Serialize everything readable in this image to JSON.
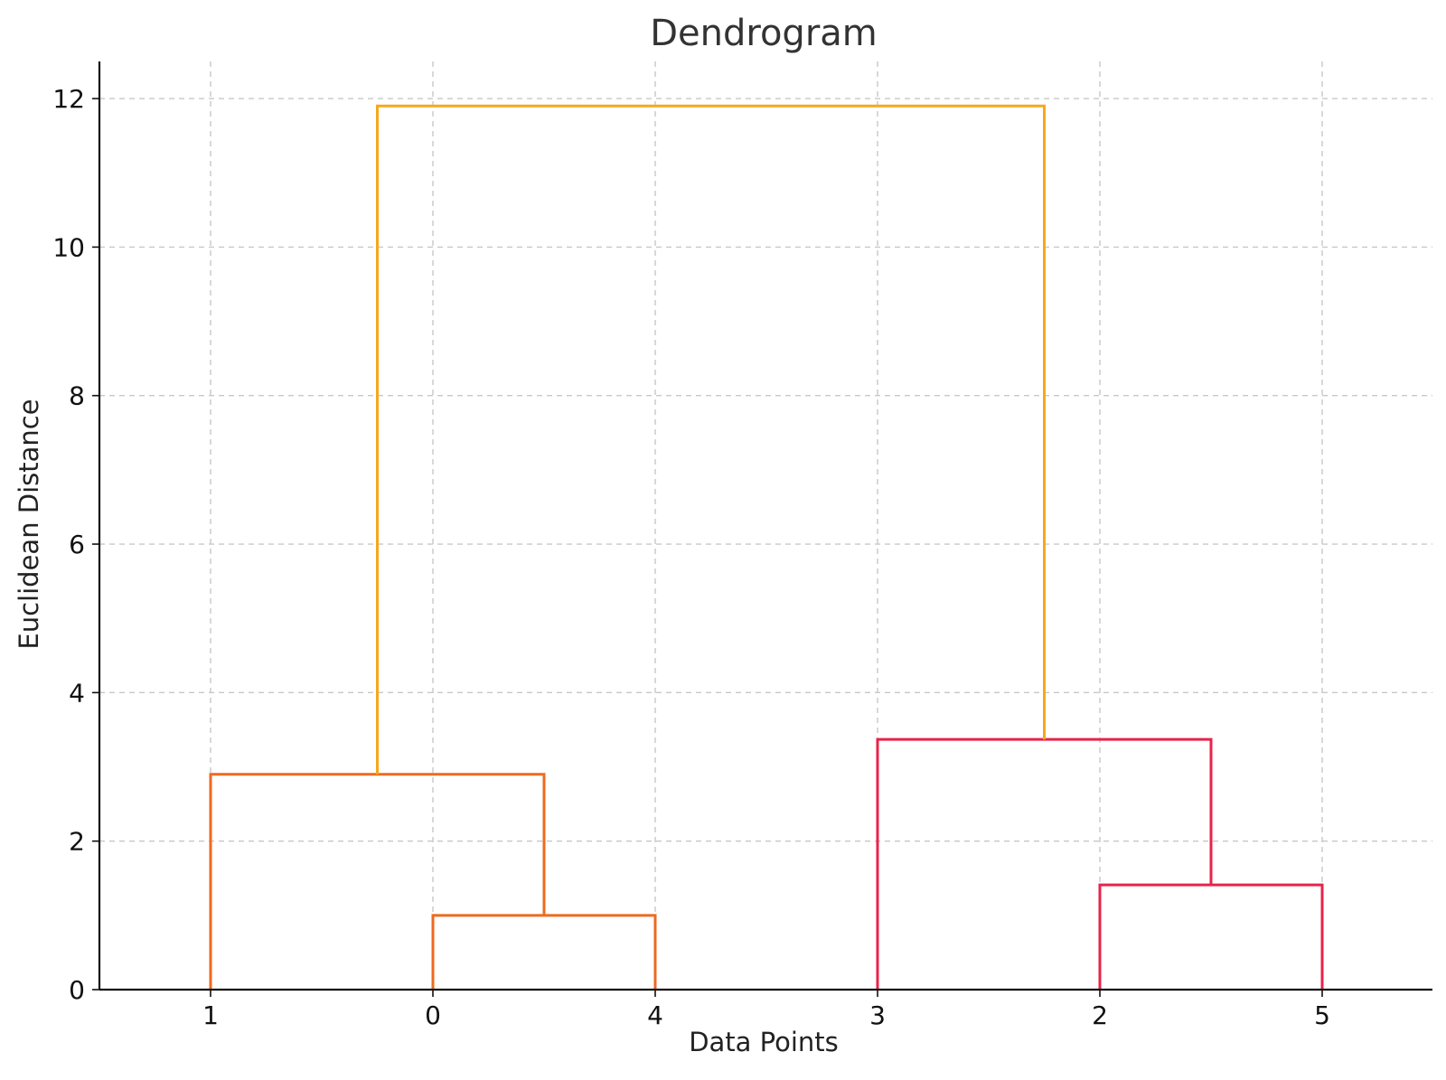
{
  "chart_data": {
    "type": "dendrogram",
    "title": "Dendrogram",
    "xlabel": "Data Points",
    "ylabel": "Euclidean Distance",
    "leaf_order": [
      "1",
      "0",
      "4",
      "3",
      "2",
      "5"
    ],
    "ylim": [
      0,
      12.5
    ],
    "yticks": [
      0,
      2,
      4,
      6,
      8,
      10,
      12
    ],
    "grid": true,
    "colors": {
      "cluster_a": "#ee6a1f",
      "cluster_b": "#e8234a",
      "root": "#f5a81c"
    },
    "merges": [
      {
        "left": "0",
        "right": "4",
        "height": 1.0,
        "color_key": "cluster_a"
      },
      {
        "left": "2",
        "right": "5",
        "height": 1.41,
        "color_key": "cluster_b"
      },
      {
        "left": "1",
        "right": "(0,4)",
        "height": 2.9,
        "color_key": "cluster_a"
      },
      {
        "left": "3",
        "right": "(2,5)",
        "height": 3.37,
        "color_key": "cluster_b"
      },
      {
        "left": "(1,0,4)",
        "right": "(3,2,5)",
        "height": 11.9,
        "color_key": "root"
      }
    ]
  }
}
